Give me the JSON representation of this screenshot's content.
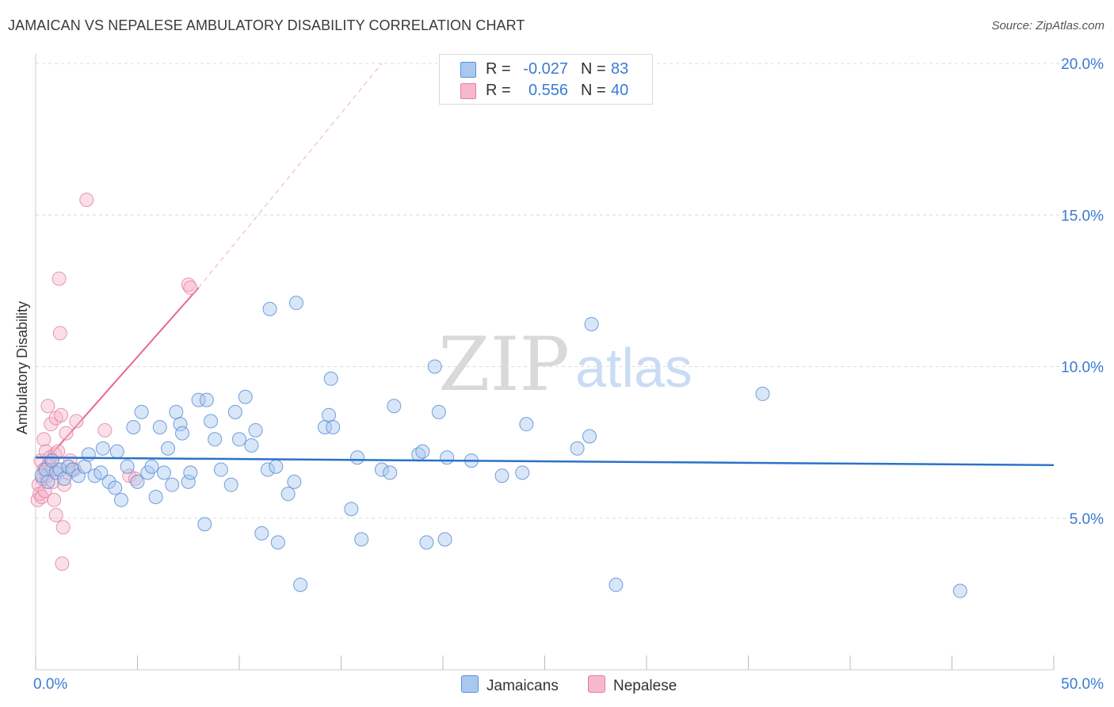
{
  "title": "JAMAICAN VS NEPALESE AMBULATORY DISABILITY CORRELATION CHART",
  "source": "Source: ZipAtlas.com",
  "watermark": {
    "zip": "ZIP",
    "atlas": "atlas"
  },
  "legend": {
    "r_label": "R =",
    "n_label": "N =",
    "rows": [
      {
        "r": "-0.027",
        "n": "83",
        "color": "#a8c8f0"
      },
      {
        "r": "0.556",
        "n": "40",
        "color": "#f7b8cc"
      }
    ]
  },
  "bottom_legend": [
    "Jamaicans",
    "Nepalese"
  ],
  "colors": {
    "blue_fill": "#a8c8f0",
    "blue_stroke": "#5b8fd6",
    "blue_line": "#2a72c9",
    "pink_fill": "#f7b8cc",
    "pink_stroke": "#e07fa0",
    "pink_line": "#e8678f",
    "axis_text": "#3a7bd5",
    "grid": "#dcdcdc"
  },
  "chart_data": {
    "type": "scatter",
    "title": "JAMAICAN VS NEPALESE AMBULATORY DISABILITY CORRELATION CHART",
    "xlabel": "",
    "ylabel": "Ambulatory Disability",
    "xlim": [
      0,
      50
    ],
    "ylim": [
      0,
      20
    ],
    "x_tick_labels": [
      "0.0%",
      "50.0%"
    ],
    "y_ticks": [
      5,
      10,
      15,
      20
    ],
    "y_tick_labels": [
      "5.0%",
      "10.0%",
      "15.0%",
      "20.0%"
    ],
    "grid": true,
    "legend_position": "top-center",
    "series": [
      {
        "name": "Jamaicans",
        "r": -0.027,
        "n": 83,
        "trend": {
          "x": [
            0,
            50
          ],
          "y": [
            7.0,
            6.75
          ]
        },
        "points": [
          [
            0.3,
            6.4
          ],
          [
            0.5,
            6.6
          ],
          [
            0.6,
            6.2
          ],
          [
            0.8,
            6.9
          ],
          [
            1.0,
            6.5
          ],
          [
            1.2,
            6.6
          ],
          [
            1.4,
            6.3
          ],
          [
            1.6,
            6.7
          ],
          [
            1.8,
            6.6
          ],
          [
            2.1,
            6.4
          ],
          [
            2.4,
            6.7
          ],
          [
            2.6,
            7.1
          ],
          [
            2.9,
            6.4
          ],
          [
            3.2,
            6.5
          ],
          [
            3.3,
            7.3
          ],
          [
            3.6,
            6.2
          ],
          [
            3.9,
            6.0
          ],
          [
            4.0,
            7.2
          ],
          [
            4.2,
            5.6
          ],
          [
            4.5,
            6.7
          ],
          [
            4.8,
            8.0
          ],
          [
            5.0,
            6.2
          ],
          [
            5.2,
            8.5
          ],
          [
            5.5,
            6.5
          ],
          [
            5.7,
            6.7
          ],
          [
            5.9,
            5.7
          ],
          [
            6.1,
            8.0
          ],
          [
            6.3,
            6.5
          ],
          [
            6.5,
            7.3
          ],
          [
            6.7,
            6.1
          ],
          [
            6.9,
            8.5
          ],
          [
            7.1,
            8.1
          ],
          [
            7.2,
            7.8
          ],
          [
            7.5,
            6.2
          ],
          [
            7.6,
            6.5
          ],
          [
            8.0,
            8.9
          ],
          [
            8.3,
            4.8
          ],
          [
            8.4,
            8.9
          ],
          [
            8.6,
            8.2
          ],
          [
            8.8,
            7.6
          ],
          [
            9.1,
            6.6
          ],
          [
            9.6,
            6.1
          ],
          [
            9.8,
            8.5
          ],
          [
            10.0,
            7.6
          ],
          [
            10.3,
            9.0
          ],
          [
            10.6,
            7.4
          ],
          [
            10.8,
            7.9
          ],
          [
            11.1,
            4.5
          ],
          [
            11.4,
            6.6
          ],
          [
            11.5,
            11.9
          ],
          [
            11.8,
            6.7
          ],
          [
            11.9,
            4.2
          ],
          [
            12.4,
            5.8
          ],
          [
            12.7,
            6.2
          ],
          [
            12.8,
            12.1
          ],
          [
            13.0,
            2.8
          ],
          [
            14.2,
            8.0
          ],
          [
            14.4,
            8.4
          ],
          [
            14.5,
            9.6
          ],
          [
            14.6,
            8.0
          ],
          [
            15.5,
            5.3
          ],
          [
            15.8,
            7.0
          ],
          [
            16.0,
            4.3
          ],
          [
            17.0,
            6.6
          ],
          [
            17.4,
            6.5
          ],
          [
            17.6,
            8.7
          ],
          [
            18.8,
            7.1
          ],
          [
            19.0,
            7.2
          ],
          [
            19.2,
            4.2
          ],
          [
            19.6,
            10.0
          ],
          [
            19.8,
            8.5
          ],
          [
            20.1,
            4.3
          ],
          [
            20.2,
            7.0
          ],
          [
            21.4,
            6.9
          ],
          [
            22.9,
            6.4
          ],
          [
            23.9,
            6.5
          ],
          [
            24.1,
            8.1
          ],
          [
            26.6,
            7.3
          ],
          [
            27.2,
            7.7
          ],
          [
            27.3,
            11.4
          ],
          [
            28.5,
            2.8
          ],
          [
            35.7,
            9.1
          ],
          [
            45.4,
            2.6
          ]
        ]
      },
      {
        "name": "Nepalese",
        "r": 0.556,
        "n": 40,
        "trend": {
          "x": [
            0.1,
            8.0
          ],
          "y": [
            6.6,
            12.6
          ]
        },
        "trend_extension": {
          "x": [
            8.0,
            17.0
          ],
          "y": [
            12.6,
            20.0
          ]
        },
        "points": [
          [
            0.1,
            5.6
          ],
          [
            0.15,
            6.1
          ],
          [
            0.2,
            5.8
          ],
          [
            0.25,
            6.9
          ],
          [
            0.3,
            5.7
          ],
          [
            0.35,
            6.3
          ],
          [
            0.4,
            6.6
          ],
          [
            0.4,
            7.6
          ],
          [
            0.45,
            5.9
          ],
          [
            0.5,
            7.2
          ],
          [
            0.55,
            6.4
          ],
          [
            0.6,
            8.7
          ],
          [
            0.65,
            6.8
          ],
          [
            0.7,
            7.0
          ],
          [
            0.75,
            8.1
          ],
          [
            0.8,
            6.6
          ],
          [
            0.85,
            6.2
          ],
          [
            0.9,
            5.6
          ],
          [
            0.95,
            7.1
          ],
          [
            1.0,
            8.3
          ],
          [
            1.0,
            5.1
          ],
          [
            1.05,
            6.6
          ],
          [
            1.1,
            7.2
          ],
          [
            1.15,
            12.9
          ],
          [
            1.2,
            11.1
          ],
          [
            1.25,
            8.4
          ],
          [
            1.3,
            3.5
          ],
          [
            1.35,
            4.7
          ],
          [
            1.4,
            6.1
          ],
          [
            1.5,
            7.8
          ],
          [
            1.6,
            6.5
          ],
          [
            1.7,
            6.9
          ],
          [
            1.9,
            6.6
          ],
          [
            2.0,
            8.2
          ],
          [
            2.5,
            15.5
          ],
          [
            3.4,
            7.9
          ],
          [
            4.6,
            6.4
          ],
          [
            4.9,
            6.3
          ],
          [
            7.5,
            12.7
          ],
          [
            7.6,
            12.6
          ]
        ]
      }
    ]
  }
}
